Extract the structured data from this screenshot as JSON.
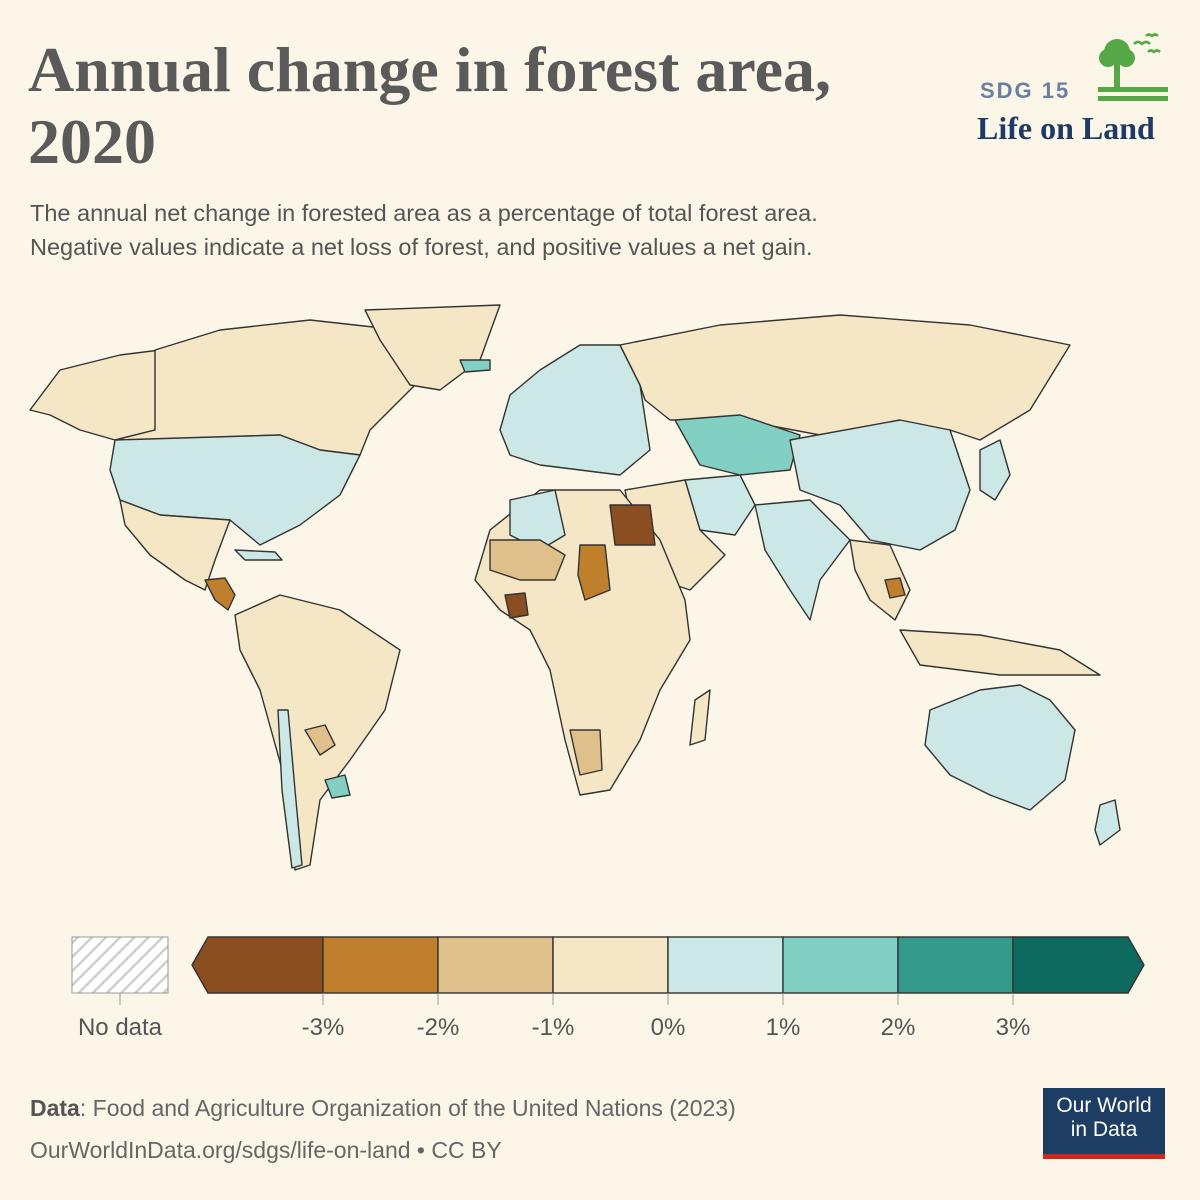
{
  "header": {
    "title": "Annual change in forest area, 2020",
    "subtitle_line1": "The annual net change in forested area as a percentage of total forest area.",
    "subtitle_line2": "Negative values indicate a net loss of forest, and positive values a net gain."
  },
  "badge": {
    "number": "SDG 15",
    "name": "Life on Land",
    "icon": "tree-with-birds-icon"
  },
  "colors": {
    "background": "#fbf6e8",
    "no_data": "#d9d9d9",
    "bins": [
      "#8a4e20",
      "#bf7f2d",
      "#dfc08a",
      "#f5e6c6",
      "#cbe8e6",
      "#82cfc4",
      "#35998c",
      "#0e6a5e"
    ]
  },
  "legend": {
    "no_data_label": "No data",
    "tick_labels": [
      "-3%",
      "-2%",
      "-1%",
      "0%",
      "1%",
      "2%",
      "3%"
    ]
  },
  "chart_data": {
    "type": "choropleth",
    "title": "Annual change in forest area, 2020",
    "unit": "%",
    "bins": [
      {
        "range": [
          null,
          -3
        ],
        "color": "#8a4e20"
      },
      {
        "range": [
          -3,
          -2
        ],
        "color": "#bf7f2d"
      },
      {
        "range": [
          -2,
          -1
        ],
        "color": "#dfc08a"
      },
      {
        "range": [
          -1,
          0
        ],
        "color": "#f5e6c6"
      },
      {
        "range": [
          0,
          1
        ],
        "color": "#cbe8e6"
      },
      {
        "range": [
          1,
          2
        ],
        "color": "#82cfc4"
      },
      {
        "range": [
          2,
          3
        ],
        "color": "#35998c"
      },
      {
        "range": [
          3,
          null
        ],
        "color": "#0e6a5e"
      }
    ],
    "regions": [
      {
        "region": "Canada",
        "bin": 3
      },
      {
        "region": "United States",
        "bin": 4
      },
      {
        "region": "Mexico",
        "bin": 3
      },
      {
        "region": "Guatemala / Honduras",
        "bin": 1
      },
      {
        "region": "Cuba",
        "bin": 4
      },
      {
        "region": "South America",
        "bin": 3
      },
      {
        "region": "Paraguay",
        "bin": 2
      },
      {
        "region": "Uruguay",
        "bin": 5
      },
      {
        "region": "Chile",
        "bin": 4
      },
      {
        "region": "Europe",
        "bin": 4
      },
      {
        "region": "Russia",
        "bin": 3
      },
      {
        "region": "Kazakhstan",
        "bin": 5
      },
      {
        "region": "China",
        "bin": 4
      },
      {
        "region": "India",
        "bin": 4
      },
      {
        "region": "Iran",
        "bin": 4
      },
      {
        "region": "Egypt",
        "bin": 0
      },
      {
        "region": "Algeria",
        "bin": 4
      },
      {
        "region": "Chad",
        "bin": 1
      },
      {
        "region": "Mali / Niger",
        "bin": 2
      },
      {
        "region": "Côte d'Ivoire",
        "bin": 0
      },
      {
        "region": "Namibia",
        "bin": 2
      },
      {
        "region": "Africa (other)",
        "bin": 3
      },
      {
        "region": "Cambodia",
        "bin": 1
      },
      {
        "region": "Australia",
        "bin": 4
      },
      {
        "region": "Greenland",
        "bin": 3
      },
      {
        "region": "Iceland",
        "bin": 5
      }
    ]
  },
  "footer": {
    "data_label": "Data",
    "data_source": ": Food and Agriculture Organization of the United Nations (2023)",
    "url": "OurWorldInData.org/sdgs/life-on-land • CC BY",
    "logo_line1": "Our World",
    "logo_line2": "in Data"
  }
}
